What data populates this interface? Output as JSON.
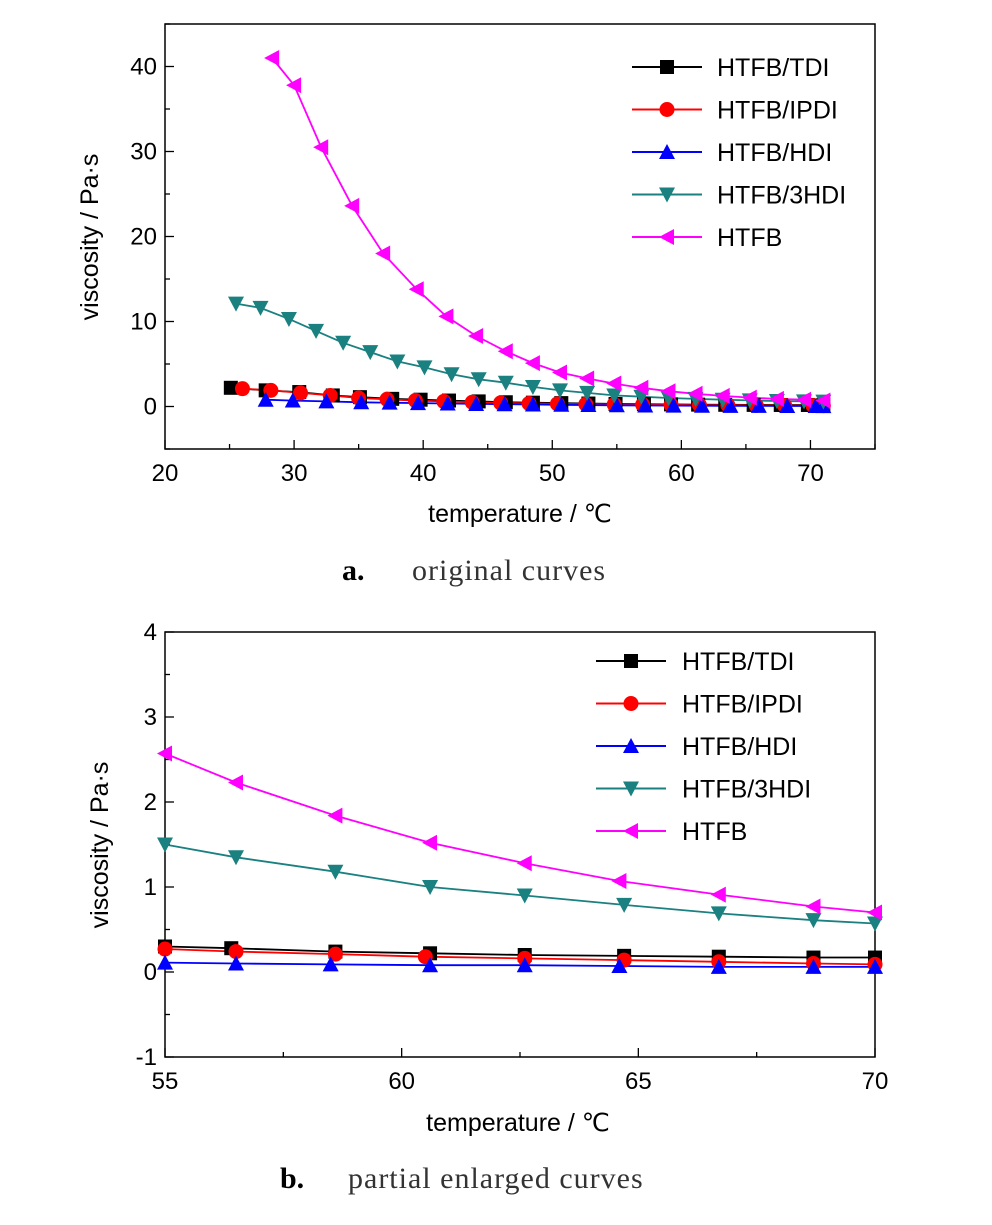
{
  "chart_data": [
    {
      "type": "line",
      "caption_letter": "a.",
      "caption_text": "original curves",
      "xlabel": "temperature / ℃",
      "ylabel": "viscosity / Pa·s",
      "xlim": [
        20,
        75
      ],
      "ylim": [
        -5,
        45
      ],
      "xticks": [
        20,
        30,
        40,
        50,
        60,
        70
      ],
      "yticks": [
        0,
        10,
        20,
        30,
        40
      ],
      "legend_position": "top-right",
      "series": [
        {
          "name": "HTFB/TDI",
          "color": "#000000",
          "marker": "square",
          "x": [
            25.1,
            27.8,
            30.4,
            33.0,
            35.1,
            37.6,
            39.8,
            42.0,
            44.3,
            46.4,
            48.5,
            50.7,
            52.8,
            54.9,
            57.1,
            59.2,
            61.3,
            63.4,
            65.6,
            67.7,
            69.8,
            71.0
          ],
          "y": [
            2.2,
            1.9,
            1.7,
            1.3,
            1.1,
            0.9,
            0.8,
            0.7,
            0.6,
            0.5,
            0.45,
            0.4,
            0.35,
            0.3,
            0.28,
            0.25,
            0.22,
            0.2,
            0.19,
            0.18,
            0.18,
            0.18
          ]
        },
        {
          "name": "HTFB/IPDI",
          "color": "#ff0000",
          "marker": "circle",
          "x": [
            26.0,
            28.2,
            30.5,
            32.8,
            35.0,
            37.2,
            39.4,
            41.6,
            43.8,
            46.0,
            48.2,
            50.4,
            52.6,
            54.8,
            57.0,
            59.2,
            61.4,
            63.6,
            65.8,
            68.0,
            70.2,
            71.0
          ],
          "y": [
            2.1,
            1.9,
            1.6,
            1.3,
            1.0,
            0.85,
            0.7,
            0.6,
            0.5,
            0.42,
            0.36,
            0.31,
            0.27,
            0.24,
            0.22,
            0.2,
            0.17,
            0.15,
            0.13,
            0.12,
            0.11,
            0.1
          ]
        },
        {
          "name": "HTFB/HDI",
          "color": "#0000ff",
          "marker": "triangle-up",
          "x": [
            27.8,
            29.9,
            32.5,
            35.2,
            37.4,
            39.6,
            41.9,
            44.1,
            46.3,
            48.5,
            50.7,
            52.8,
            55.0,
            57.2,
            59.4,
            61.6,
            63.8,
            66.0,
            68.2,
            70.4,
            71.0
          ],
          "y": [
            0.8,
            0.7,
            0.6,
            0.5,
            0.45,
            0.4,
            0.35,
            0.3,
            0.27,
            0.24,
            0.2,
            0.17,
            0.14,
            0.12,
            0.1,
            0.09,
            0.08,
            0.07,
            0.06,
            0.06,
            0.05
          ]
        },
        {
          "name": "HTFB/3HDI",
          "color": "#1a8080",
          "marker": "triangle-down",
          "x": [
            25.5,
            27.4,
            29.6,
            31.7,
            33.8,
            35.9,
            38.0,
            40.1,
            42.2,
            44.3,
            46.4,
            48.5,
            50.6,
            52.7,
            54.8,
            56.9,
            59.0,
            61.1,
            63.2,
            65.3,
            67.4,
            69.5,
            71.0
          ],
          "y": [
            12.1,
            11.6,
            10.3,
            8.9,
            7.5,
            6.4,
            5.3,
            4.6,
            3.8,
            3.2,
            2.8,
            2.3,
            1.9,
            1.6,
            1.3,
            1.15,
            1.0,
            0.9,
            0.8,
            0.72,
            0.65,
            0.6,
            0.57
          ]
        },
        {
          "name": "HTFB",
          "color": "#ff00ff",
          "marker": "triangle-left",
          "x": [
            28.3,
            30.0,
            32.1,
            34.5,
            36.9,
            39.5,
            41.8,
            44.1,
            46.4,
            48.5,
            50.6,
            52.7,
            54.8,
            56.9,
            59.0,
            61.1,
            63.2,
            65.3,
            67.4,
            69.5,
            71.0
          ],
          "y": [
            41.0,
            37.8,
            30.5,
            23.6,
            18.0,
            13.8,
            10.6,
            8.3,
            6.5,
            5.1,
            4.0,
            3.3,
            2.7,
            2.2,
            1.8,
            1.5,
            1.25,
            1.05,
            0.9,
            0.8,
            0.7
          ]
        }
      ]
    },
    {
      "type": "line",
      "caption_letter": "b.",
      "caption_text": "partial enlarged curves",
      "xlabel": "temperature / ℃",
      "ylabel": "viscosity / Pa·s",
      "xlim": [
        55,
        70
      ],
      "ylim": [
        -1,
        4
      ],
      "xticks": [
        55,
        60,
        65,
        70
      ],
      "yticks": [
        -1,
        0,
        1,
        2,
        3,
        4
      ],
      "legend_position": "top-right",
      "series": [
        {
          "name": "HTFB/TDI",
          "color": "#000000",
          "marker": "square",
          "x": [
            55.0,
            56.4,
            58.6,
            60.6,
            62.6,
            64.7,
            66.7,
            68.7,
            70.0
          ],
          "y": [
            0.3,
            0.28,
            0.24,
            0.22,
            0.2,
            0.19,
            0.18,
            0.17,
            0.17
          ]
        },
        {
          "name": "HTFB/IPDI",
          "color": "#ff0000",
          "marker": "circle",
          "x": [
            55.0,
            56.5,
            58.6,
            60.5,
            62.6,
            64.7,
            66.7,
            68.7,
            70.0
          ],
          "y": [
            0.27,
            0.24,
            0.21,
            0.18,
            0.16,
            0.14,
            0.12,
            0.1,
            0.09
          ]
        },
        {
          "name": "HTFB/HDI",
          "color": "#0000ff",
          "marker": "triangle-up",
          "x": [
            55.0,
            56.5,
            58.5,
            60.6,
            62.6,
            64.6,
            66.7,
            68.7,
            70.0
          ],
          "y": [
            0.11,
            0.1,
            0.09,
            0.08,
            0.08,
            0.07,
            0.06,
            0.06,
            0.06
          ]
        },
        {
          "name": "HTFB/3HDI",
          "color": "#1a8080",
          "marker": "triangle-down",
          "x": [
            55.0,
            56.5,
            58.6,
            60.6,
            62.6,
            64.7,
            66.7,
            68.7,
            70.0
          ],
          "y": [
            1.5,
            1.35,
            1.18,
            1.0,
            0.9,
            0.79,
            0.69,
            0.61,
            0.57
          ]
        },
        {
          "name": "HTFB",
          "color": "#ff00ff",
          "marker": "triangle-left",
          "x": [
            55.0,
            56.5,
            58.6,
            60.6,
            62.6,
            64.6,
            66.7,
            68.7,
            70.0
          ],
          "y": [
            2.57,
            2.23,
            1.84,
            1.52,
            1.28,
            1.07,
            0.91,
            0.77,
            0.7
          ]
        }
      ]
    }
  ]
}
